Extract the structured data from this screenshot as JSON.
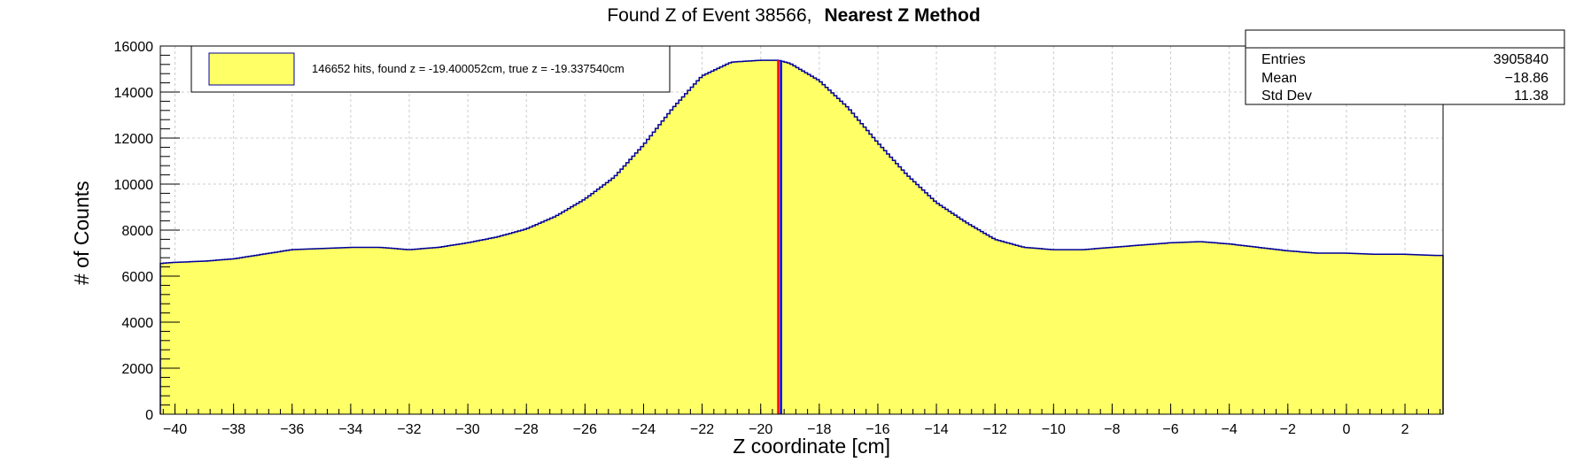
{
  "title": {
    "normal": "Found Z of Event 38566,",
    "bold": "Nearest Z Method"
  },
  "legend": {
    "label": "146652 hits, found z = -19.400052cm, true z = -19.337540cm",
    "fill_color": "#ffff66"
  },
  "stats": {
    "rows": [
      {
        "name": "Entries",
        "value": "3905840"
      },
      {
        "name": "Mean",
        "value": "−18.86"
      },
      {
        "name": "Std Dev",
        "value": "11.38"
      }
    ]
  },
  "colors": {
    "fill": "#ffff66",
    "outline": "#000099",
    "found_line": "#ff0000",
    "true_line": "#0000ff",
    "grid": "#cccccc"
  },
  "chart_data": {
    "type": "area",
    "title": "Found Z of Event 38566,   Nearest Z Method",
    "xlabel": "Z coordinate [cm]",
    "ylabel": "# of Counts",
    "xlim": [
      -40.5,
      3.3
    ],
    "ylim": [
      0,
      16000
    ],
    "grid": true,
    "legend_position": "top-left",
    "x_ticks": [
      "−40",
      "−38",
      "−36",
      "−34",
      "−32",
      "−30",
      "−28",
      "−26",
      "−24",
      "−22",
      "−20",
      "−18",
      "−16",
      "−14",
      "−12",
      "−10",
      "−8",
      "−6",
      "−4",
      "−2",
      "0",
      "2"
    ],
    "y_ticks": [
      "0",
      "2000",
      "4000",
      "6000",
      "8000",
      "10000",
      "12000",
      "14000",
      "16000"
    ],
    "series": [
      {
        "x": [
          -40.5,
          -40,
          -39,
          -38,
          -37,
          -36,
          -35,
          -34,
          -33,
          -32,
          -31,
          -30,
          -29,
          -28,
          -27,
          -26,
          -25,
          -24,
          -23,
          -22,
          -21,
          -20,
          -19.4,
          -19,
          -18,
          -17,
          -16,
          -15,
          -14,
          -13,
          -12,
          -11,
          -10,
          -9,
          -8,
          -7,
          -6,
          -5,
          -4,
          -3,
          -2,
          -1,
          0,
          1,
          2,
          3,
          3.3
        ],
        "y": [
          6550,
          6600,
          6650,
          6750,
          6950,
          7150,
          7200,
          7250,
          7250,
          7150,
          7250,
          7450,
          7700,
          8050,
          8600,
          9350,
          10300,
          11700,
          13300,
          14700,
          15300,
          15380,
          15380,
          15250,
          14500,
          13300,
          11800,
          10400,
          9200,
          8350,
          7600,
          7250,
          7150,
          7150,
          7250,
          7350,
          7450,
          7500,
          7400,
          7250,
          7100,
          7000,
          7000,
          6950,
          6950,
          6900,
          6900
        ]
      }
    ],
    "markers": [
      {
        "name": "found z",
        "x": -19.400052
      },
      {
        "name": "true z",
        "x": -19.33754
      }
    ]
  }
}
